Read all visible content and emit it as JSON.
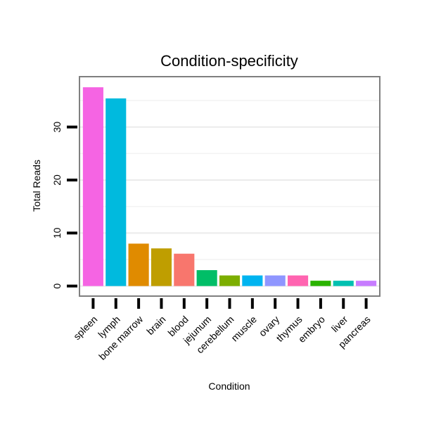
{
  "chart_data": {
    "type": "bar",
    "title": "Condition-specificity",
    "xlabel": "Condition",
    "ylabel": "Total Reads",
    "categories": [
      "spleen",
      "lymph",
      "bone marrow",
      "brain",
      "blood",
      "jejunum",
      "cerebellum",
      "muscle",
      "ovary",
      "thymus",
      "embryo",
      "liver",
      "pancreas"
    ],
    "values": [
      37.5,
      35.4,
      8.0,
      7.1,
      6.1,
      3.0,
      2.0,
      2.0,
      2.0,
      2.0,
      1.0,
      1.0,
      1.0
    ],
    "colors": [
      "#F564E3",
      "#00BADE",
      "#E08B00",
      "#BF9E00",
      "#F8766D",
      "#00BE67",
      "#7CAE00",
      "#00B4F0",
      "#8F96FF",
      "#FF64B0",
      "#2AB300",
      "#00C0B0",
      "#C77CFF"
    ],
    "ylim": [
      -1.9,
      39.5
    ],
    "yticks": [
      0,
      10,
      20,
      30
    ],
    "grid": true,
    "legend": "none"
  }
}
